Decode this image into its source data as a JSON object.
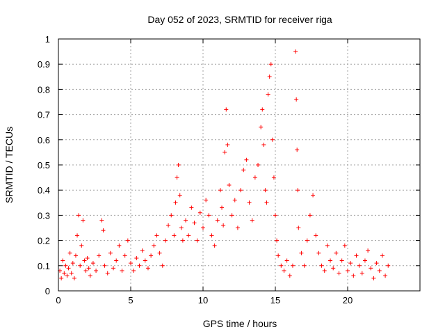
{
  "chart_data": {
    "type": "scatter",
    "title": "Day 052 of 2023, SRMTID for receiver riga",
    "xlabel": "GPS time / hours",
    "ylabel": "SRMTID / TECUs",
    "xlim": [
      0,
      25
    ],
    "ylim": [
      0,
      1
    ],
    "xticks": [
      0,
      5,
      10,
      15,
      20
    ],
    "xtick_labels": [
      "0",
      "5",
      "10",
      "15",
      "20"
    ],
    "yticks": [
      0,
      0.1,
      0.2,
      0.3,
      0.4,
      0.5,
      0.6,
      0.7,
      0.8,
      0.9,
      1
    ],
    "ytick_labels": [
      "0",
      "0.1",
      "0.2",
      "0.3",
      "0.4",
      "0.5",
      "0.6",
      "0.7",
      "0.8",
      "0.9",
      "1"
    ],
    "grid": true,
    "marker": "+",
    "color": "#ff0000",
    "series": [
      {
        "name": "SRMTID",
        "points": [
          [
            0.1,
            0.08
          ],
          [
            0.2,
            0.05
          ],
          [
            0.3,
            0.12
          ],
          [
            0.4,
            0.07
          ],
          [
            0.5,
            0.1
          ],
          [
            0.6,
            0.06
          ],
          [
            0.7,
            0.09
          ],
          [
            0.8,
            0.15
          ],
          [
            0.9,
            0.07
          ],
          [
            1.0,
            0.11
          ],
          [
            1.1,
            0.05
          ],
          [
            1.2,
            0.14
          ],
          [
            1.3,
            0.22
          ],
          [
            1.4,
            0.3
          ],
          [
            1.5,
            0.1
          ],
          [
            1.6,
            0.18
          ],
          [
            1.7,
            0.28
          ],
          [
            1.8,
            0.12
          ],
          [
            1.9,
            0.08
          ],
          [
            2.0,
            0.13
          ],
          [
            2.1,
            0.09
          ],
          [
            2.2,
            0.06
          ],
          [
            2.4,
            0.11
          ],
          [
            2.6,
            0.08
          ],
          [
            2.8,
            0.14
          ],
          [
            3.0,
            0.28
          ],
          [
            3.1,
            0.24
          ],
          [
            3.2,
            0.1
          ],
          [
            3.4,
            0.07
          ],
          [
            3.6,
            0.15
          ],
          [
            3.8,
            0.09
          ],
          [
            4.0,
            0.12
          ],
          [
            4.2,
            0.18
          ],
          [
            4.4,
            0.08
          ],
          [
            4.6,
            0.14
          ],
          [
            4.8,
            0.2
          ],
          [
            5.0,
            0.11
          ],
          [
            5.2,
            0.08
          ],
          [
            5.4,
            0.13
          ],
          [
            5.6,
            0.1
          ],
          [
            5.8,
            0.16
          ],
          [
            6.0,
            0.12
          ],
          [
            6.2,
            0.09
          ],
          [
            6.4,
            0.14
          ],
          [
            6.6,
            0.18
          ],
          [
            6.8,
            0.22
          ],
          [
            7.0,
            0.15
          ],
          [
            7.2,
            0.1
          ],
          [
            7.4,
            0.2
          ],
          [
            7.6,
            0.26
          ],
          [
            7.8,
            0.3
          ],
          [
            8.0,
            0.22
          ],
          [
            8.1,
            0.35
          ],
          [
            8.2,
            0.45
          ],
          [
            8.3,
            0.5
          ],
          [
            8.4,
            0.38
          ],
          [
            8.5,
            0.25
          ],
          [
            8.6,
            0.2
          ],
          [
            8.8,
            0.28
          ],
          [
            9.0,
            0.22
          ],
          [
            9.2,
            0.33
          ],
          [
            9.4,
            0.27
          ],
          [
            9.6,
            0.2
          ],
          [
            9.8,
            0.31
          ],
          [
            10.0,
            0.25
          ],
          [
            10.2,
            0.36
          ],
          [
            10.4,
            0.3
          ],
          [
            10.6,
            0.22
          ],
          [
            10.8,
            0.18
          ],
          [
            11.0,
            0.28
          ],
          [
            11.2,
            0.4
          ],
          [
            11.3,
            0.33
          ],
          [
            11.4,
            0.26
          ],
          [
            11.5,
            0.55
          ],
          [
            11.6,
            0.72
          ],
          [
            11.7,
            0.58
          ],
          [
            11.8,
            0.42
          ],
          [
            12.0,
            0.3
          ],
          [
            12.2,
            0.36
          ],
          [
            12.4,
            0.25
          ],
          [
            12.6,
            0.4
          ],
          [
            12.8,
            0.48
          ],
          [
            13.0,
            0.52
          ],
          [
            13.2,
            0.35
          ],
          [
            13.4,
            0.28
          ],
          [
            13.6,
            0.45
          ],
          [
            13.8,
            0.5
          ],
          [
            14.0,
            0.65
          ],
          [
            14.1,
            0.72
          ],
          [
            14.2,
            0.58
          ],
          [
            14.3,
            0.4
          ],
          [
            14.4,
            0.35
          ],
          [
            14.5,
            0.78
          ],
          [
            14.6,
            0.85
          ],
          [
            14.7,
            0.9
          ],
          [
            14.8,
            0.6
          ],
          [
            14.9,
            0.45
          ],
          [
            15.0,
            0.3
          ],
          [
            15.1,
            0.2
          ],
          [
            15.2,
            0.14
          ],
          [
            15.4,
            0.1
          ],
          [
            15.6,
            0.08
          ],
          [
            15.8,
            0.12
          ],
          [
            16.0,
            0.06
          ],
          [
            16.2,
            0.1
          ],
          [
            16.4,
            0.95
          ],
          [
            16.45,
            0.76
          ],
          [
            16.5,
            0.56
          ],
          [
            16.55,
            0.4
          ],
          [
            16.6,
            0.25
          ],
          [
            16.8,
            0.15
          ],
          [
            17.0,
            0.1
          ],
          [
            17.2,
            0.2
          ],
          [
            17.4,
            0.3
          ],
          [
            17.6,
            0.38
          ],
          [
            17.8,
            0.22
          ],
          [
            18.0,
            0.15
          ],
          [
            18.2,
            0.1
          ],
          [
            18.4,
            0.08
          ],
          [
            18.6,
            0.18
          ],
          [
            18.8,
            0.12
          ],
          [
            19.0,
            0.09
          ],
          [
            19.2,
            0.15
          ],
          [
            19.4,
            0.07
          ],
          [
            19.6,
            0.12
          ],
          [
            19.8,
            0.18
          ],
          [
            20.0,
            0.08
          ],
          [
            20.2,
            0.11
          ],
          [
            20.4,
            0.06
          ],
          [
            20.6,
            0.14
          ],
          [
            20.8,
            0.1
          ],
          [
            21.0,
            0.07
          ],
          [
            21.2,
            0.12
          ],
          [
            21.4,
            0.16
          ],
          [
            21.6,
            0.09
          ],
          [
            21.8,
            0.05
          ],
          [
            22.0,
            0.11
          ],
          [
            22.2,
            0.08
          ],
          [
            22.4,
            0.14
          ],
          [
            22.6,
            0.06
          ],
          [
            22.8,
            0.1
          ]
        ]
      }
    ]
  }
}
